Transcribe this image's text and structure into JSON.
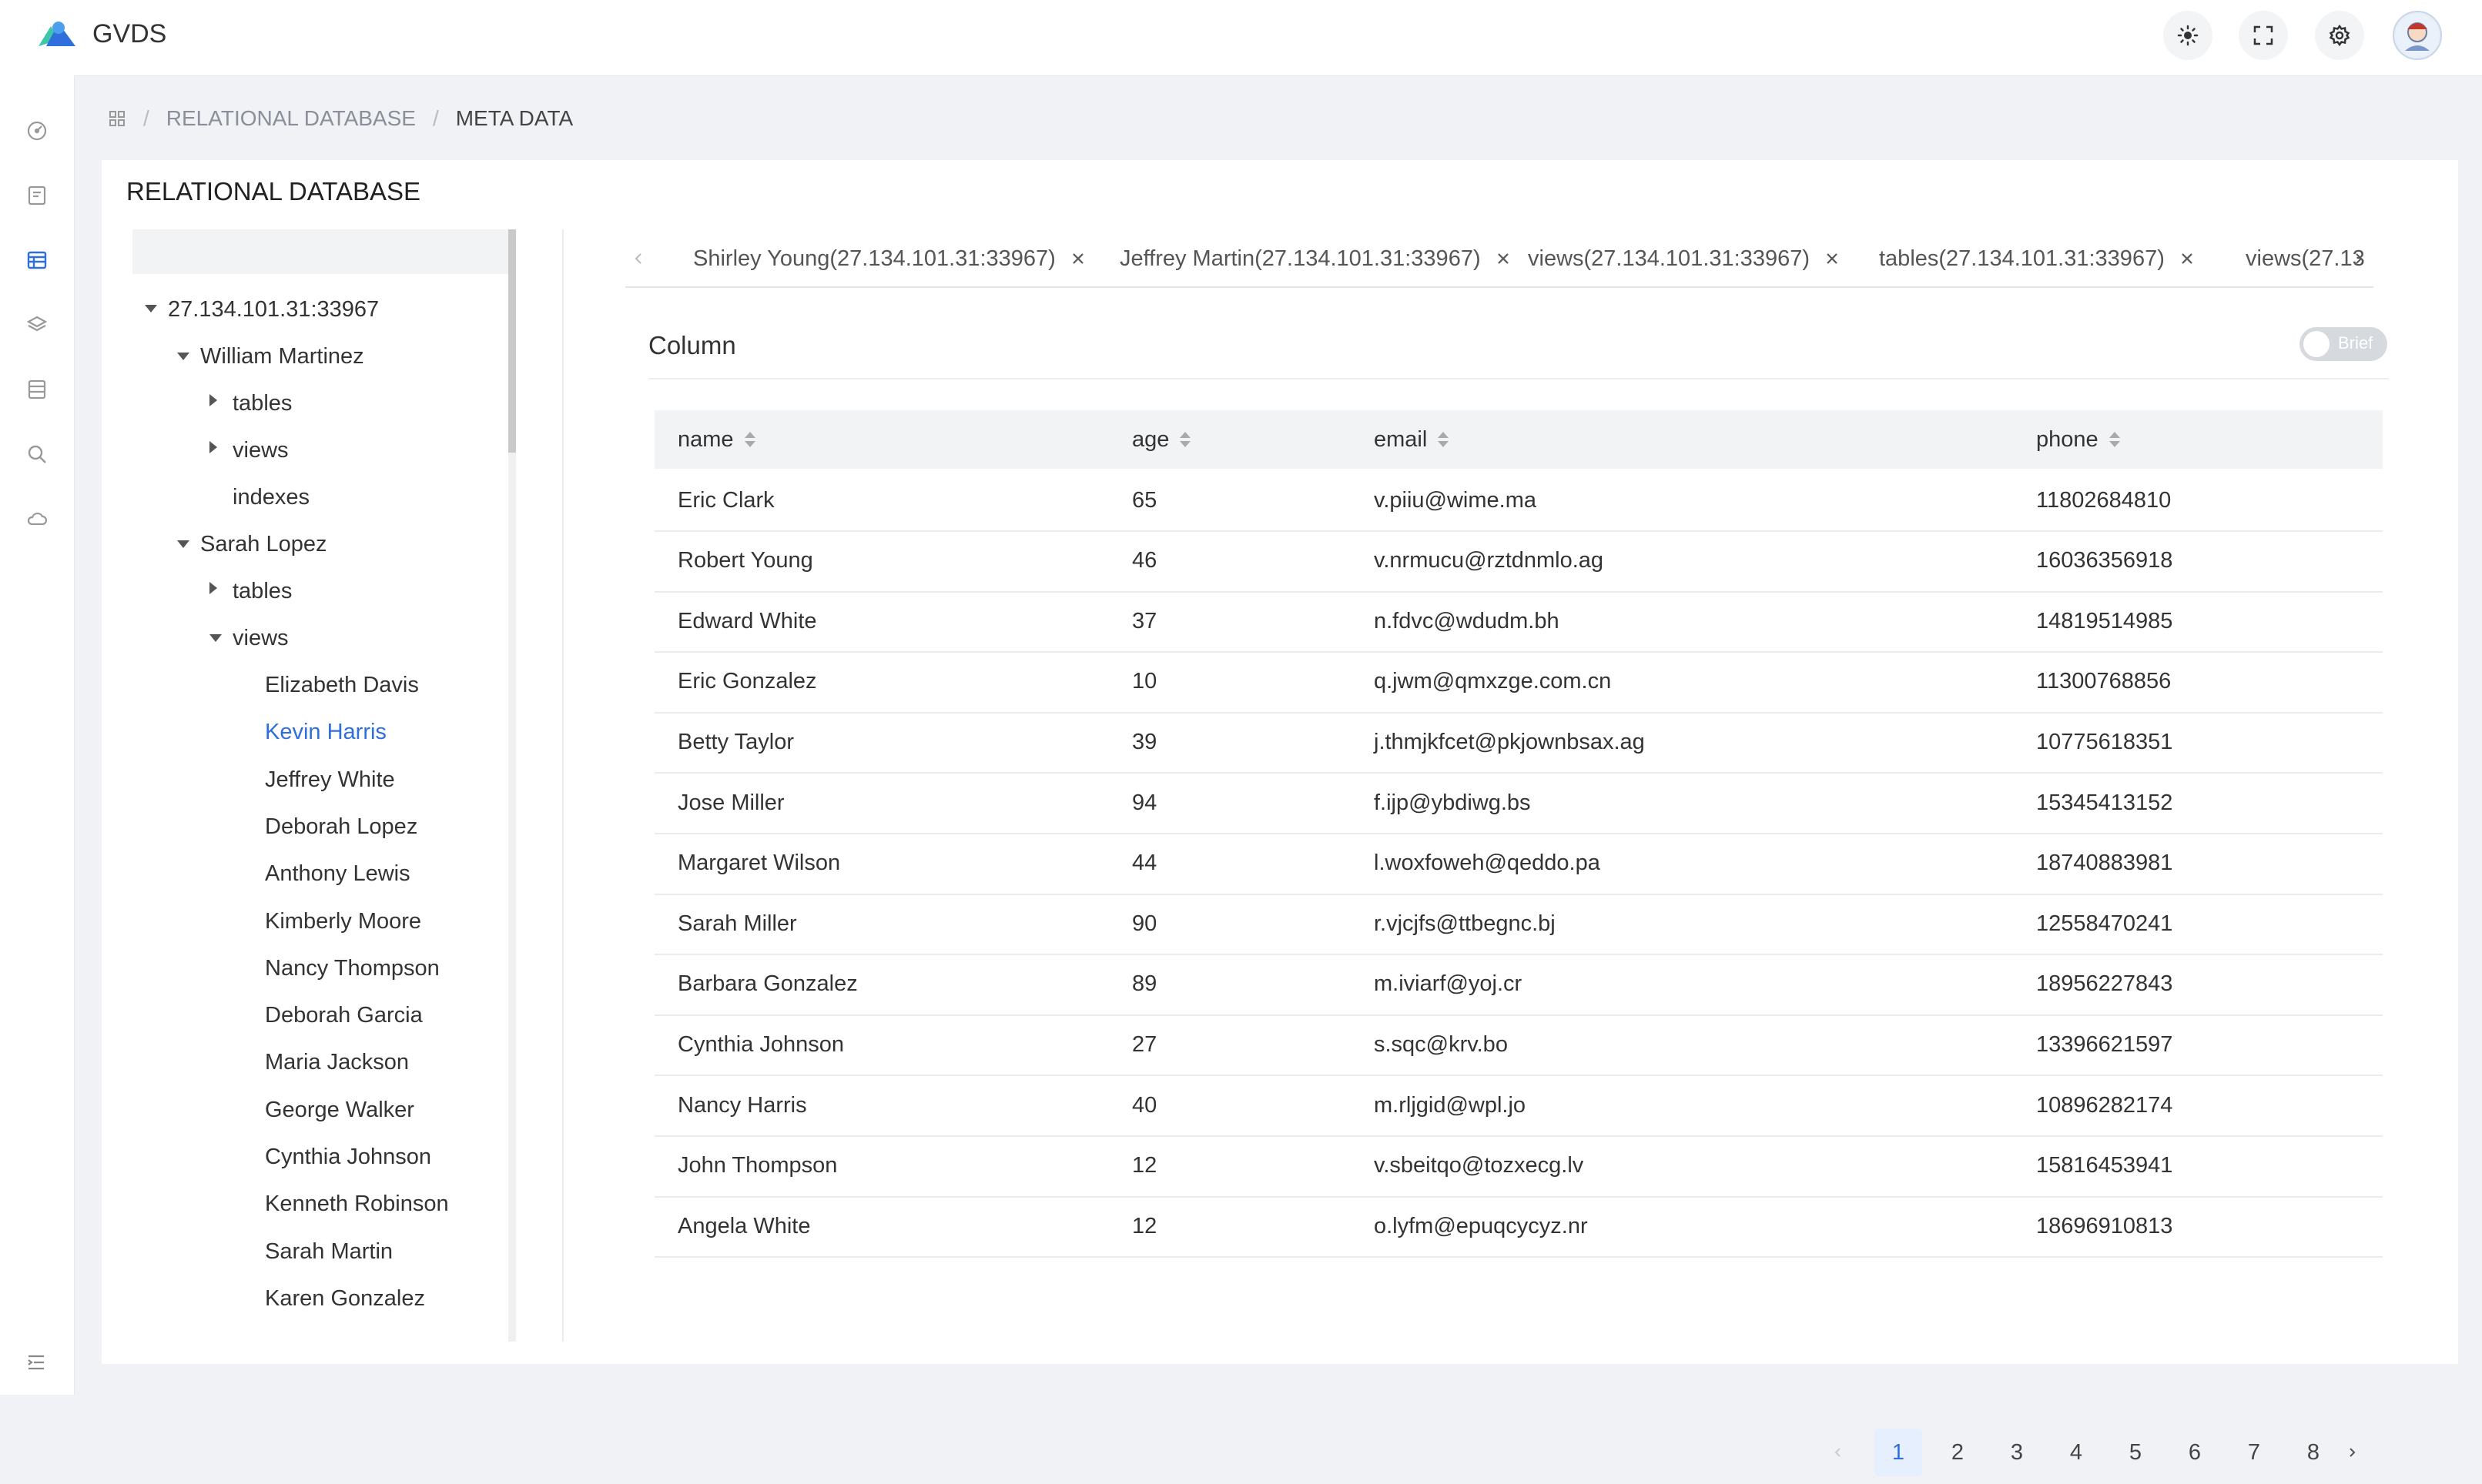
{
  "app": {
    "title": "GVDS"
  },
  "breadcrumb": {
    "items": [
      "RELATIONAL DATABASE",
      "META DATA"
    ]
  },
  "card": {
    "title": "RELATIONAL DATABASE"
  },
  "tree": {
    "root": "27.134.101.31:33967",
    "db1": {
      "label": "William Martinez",
      "children": [
        "tables",
        "views",
        "indexes"
      ]
    },
    "db2": {
      "label": "Sarah Lopez",
      "tables": "tables",
      "views": "views"
    },
    "views_items": [
      "Elizabeth Davis",
      "Kevin Harris",
      "Jeffrey White",
      "Deborah Lopez",
      "Anthony Lewis",
      "Kimberly Moore",
      "Nancy Thompson",
      "Deborah Garcia",
      "Maria Jackson",
      "George Walker",
      "Cynthia Johnson",
      "Kenneth Robinson",
      "Sarah Martin",
      "Karen Gonzalez"
    ],
    "selected": "Kevin Harris"
  },
  "tabs": [
    "Shirley Young(27.134.101.31:33967)",
    "Jeffrey Martin(27.134.101.31:33967)",
    "views(27.134.101.31:33967)",
    "tables(27.134.101.31:33967)",
    "views(27.13"
  ],
  "section": {
    "title": "Column",
    "toggle_label": "Brief",
    "toggle_on": false
  },
  "table": {
    "columns": [
      "name",
      "age",
      "email",
      "phone"
    ],
    "rows": [
      [
        "Eric Clark",
        "65",
        "v.piiu@wime.ma",
        "11802684810"
      ],
      [
        "Robert Young",
        "46",
        "v.nrmucu@rztdnmlo.ag",
        "16036356918"
      ],
      [
        "Edward White",
        "37",
        "n.fdvc@wdudm.bh",
        "14819514985"
      ],
      [
        "Eric Gonzalez",
        "10",
        "q.jwm@qmxzge.com.cn",
        "11300768856"
      ],
      [
        "Betty Taylor",
        "39",
        "j.thmjkfcet@pkjownbsax.ag",
        "10775618351"
      ],
      [
        "Jose Miller",
        "94",
        "f.ijp@ybdiwg.bs",
        "15345413152"
      ],
      [
        "Margaret Wilson",
        "44",
        "l.woxfoweh@qeddo.pa",
        "18740883981"
      ],
      [
        "Sarah Miller",
        "90",
        "r.vjcjfs@ttbegnc.bj",
        "12558470241"
      ],
      [
        "Barbara Gonzalez",
        "89",
        "m.iviarf@yoj.cr",
        "18956227843"
      ],
      [
        "Cynthia Johnson",
        "27",
        "s.sqc@krv.bo",
        "13396621597"
      ],
      [
        "Nancy Harris",
        "40",
        "m.rljgid@wpl.jo",
        "10896282174"
      ],
      [
        "John Thompson",
        "12",
        "v.sbeitqo@tozxecg.lv",
        "15816453941"
      ],
      [
        "Angela White",
        "12",
        "o.lyfm@epuqcycyz.nr",
        "18696910813"
      ]
    ]
  },
  "pagination": {
    "pages": [
      "1",
      "2",
      "3",
      "4",
      "5",
      "6",
      "7",
      "8"
    ],
    "current": "1"
  },
  "colors": {
    "accent": "#2f6fdc",
    "selected_page_bg": "#e6effd"
  }
}
